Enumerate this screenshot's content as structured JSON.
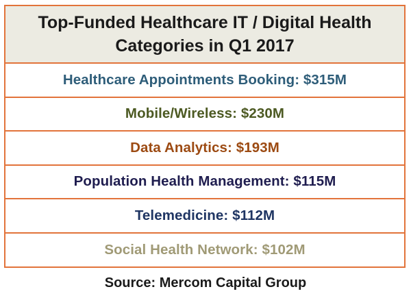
{
  "table": {
    "title": "Top-Funded Healthcare IT / Digital Health\nCategories in Q1 2017",
    "rows": [
      {
        "label": "Healthcare Appointments Booking: $315M",
        "color": "#2e5d79"
      },
      {
        "label": "Mobile/Wireless: $230M",
        "color": "#4d5a23"
      },
      {
        "label": "Data Analytics: $193M",
        "color": "#9c4a12"
      },
      {
        "label": "Population Health Management: $115M",
        "color": "#1f1d4f"
      },
      {
        "label": "Telemedicine: $112M",
        "color": "#1f3563"
      },
      {
        "label": "Social Health Network: $102M",
        "color": "#a09a76"
      }
    ]
  },
  "footer": {
    "source": "Source: Mercom Capital Group"
  },
  "colors": {
    "border": "#e2733a",
    "header_bg": "#ecebe2"
  }
}
